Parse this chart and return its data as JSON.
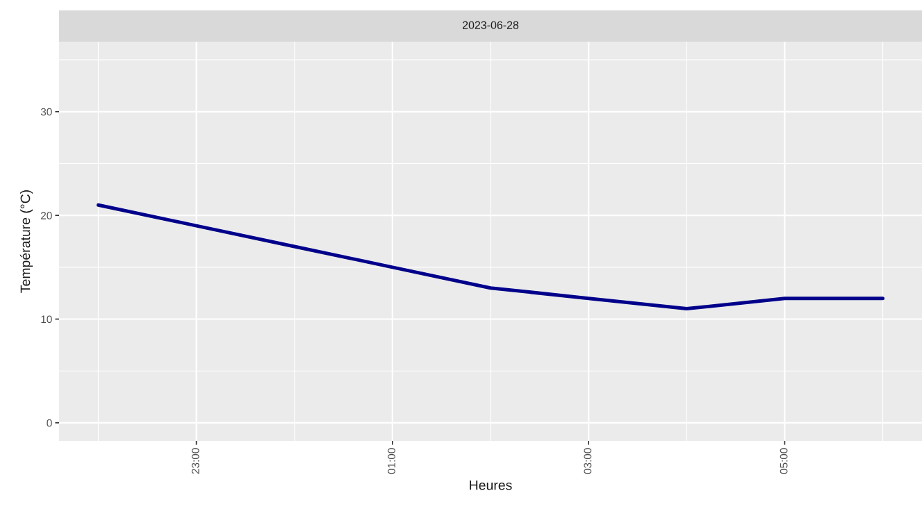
{
  "chart_data": {
    "type": "line",
    "title": "2023-06-28",
    "xlabel": "Heures",
    "ylabel": "Température (°C)",
    "x": [
      "2023-06-28T22:00",
      "2023-06-28T23:00",
      "2023-06-29T00:00",
      "2023-06-29T01:00",
      "2023-06-29T02:00",
      "2023-06-29T03:00",
      "2023-06-29T04:00",
      "2023-06-29T05:00",
      "2023-06-29T06:00"
    ],
    "series": [
      {
        "color": "#00008b",
        "values": [
          21,
          19,
          17,
          15,
          13,
          12,
          11,
          12,
          12
        ]
      }
    ],
    "xlim": [
      "2023-06-28T21:36",
      "2023-06-29T06:24"
    ],
    "xticks": [
      {
        "value": "2023-06-28T23:00",
        "label": "23:00"
      },
      {
        "value": "2023-06-29T01:00",
        "label": "01:00"
      },
      {
        "value": "2023-06-29T03:00",
        "label": "03:00"
      },
      {
        "value": "2023-06-29T05:00",
        "label": "05:00"
      }
    ],
    "ylim": [
      -1.75,
      36.75
    ],
    "yticks": [
      0,
      10,
      20,
      30
    ],
    "grid": true,
    "marker": "none",
    "line_style": "solid"
  }
}
